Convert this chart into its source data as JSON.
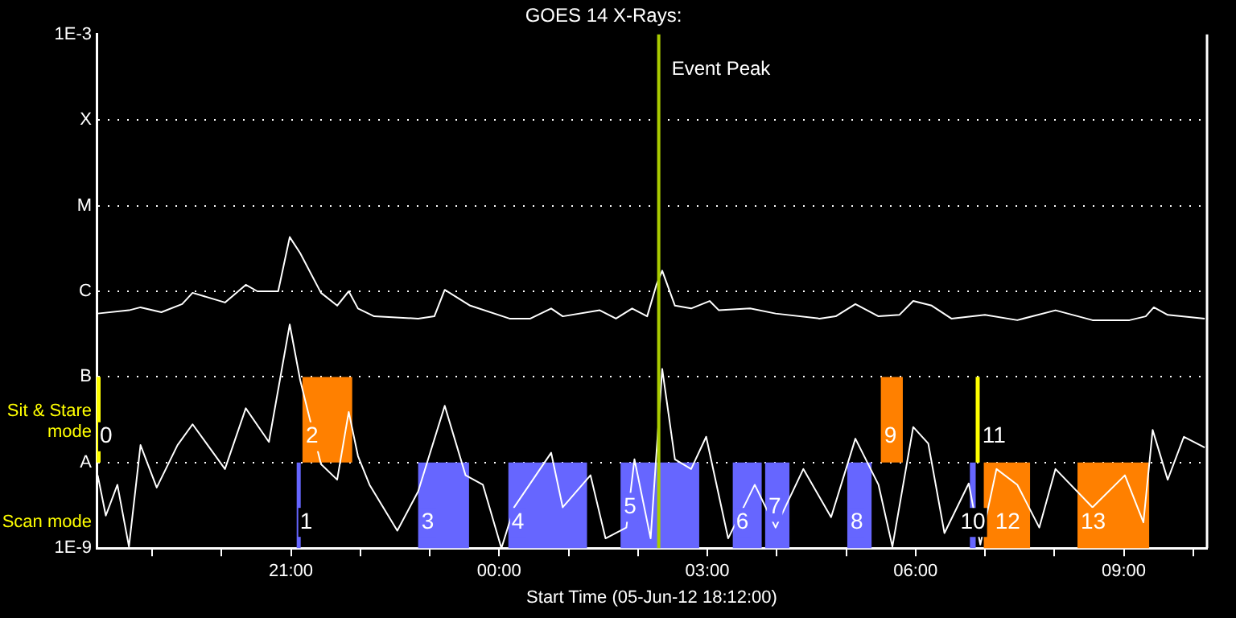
{
  "chart_data": {
    "type": "line",
    "title": "GOES 14 X-Rays:",
    "xlabel": "Start Time (05-Jun-12 18:12:00)",
    "log": true,
    "grid": "y",
    "legend": false,
    "marker": "none",
    "xlim": [
      "--06-05T18:12",
      "--06-06T10:12"
    ],
    "xticks": [
      {
        "value": "--06-05T19:00",
        "label": null
      },
      {
        "value": "--06-05T20:00",
        "label": null
      },
      {
        "value": "--06-05T21:00",
        "label": "21:00"
      },
      {
        "value": "--06-05T22:00",
        "label": null
      },
      {
        "value": "--06-05T23:00",
        "label": null
      },
      {
        "value": "--06-06T00:00",
        "label": "00:00"
      },
      {
        "value": "--06-06T01:00",
        "label": null
      },
      {
        "value": "--06-06T02:00",
        "label": null
      },
      {
        "value": "--06-06T03:00",
        "label": "03:00"
      },
      {
        "value": "--06-06T04:00",
        "label": null
      },
      {
        "value": "--06-06T05:00",
        "label": null
      },
      {
        "value": "--06-06T06:00",
        "label": "06:00"
      },
      {
        "value": "--06-06T07:00",
        "label": null
      },
      {
        "value": "--06-06T08:00",
        "label": null
      },
      {
        "value": "--06-06T09:00",
        "label": "09:00"
      },
      {
        "value": "--06-06T10:00",
        "label": null
      }
    ],
    "ylim": [
      1e-09,
      0.001
    ],
    "yticks": [
      {
        "value": 1e-09,
        "label": "1E-9"
      },
      {
        "value": 2e-09,
        "label": "Scan mode"
      },
      {
        "value": 1e-08,
        "label": "A"
      },
      {
        "value": 3e-08,
        "label": "Sit & Stare mode"
      },
      {
        "value": 1e-07,
        "label": "B"
      },
      {
        "value": 1e-06,
        "label": "C"
      },
      {
        "value": 1e-05,
        "label": "M"
      },
      {
        "value": 0.0001,
        "label": "X"
      },
      {
        "value": 0.001,
        "label": "1E-3"
      }
    ],
    "series": [
      {
        "color": "#ffffff",
        "x": [
          "--06-05T18:13",
          "--06-05T18:40",
          "--06-05T18:50",
          "--06-05T19:08",
          "--06-05T19:26",
          "--06-05T19:35",
          "--06-05T20:03",
          "--06-05T20:21",
          "--06-05T20:31",
          "--06-05T20:49",
          "--06-05T20:59",
          "--06-05T21:08",
          "--06-05T21:26",
          "--06-05T21:40",
          "--06-05T21:50",
          "--06-05T21:58",
          "--06-05T22:12",
          "--06-05T22:50",
          "--06-05T23:04",
          "--06-05T23:13",
          "--06-05T23:35",
          "--06-06T00:09",
          "--06-06T00:27",
          "--06-06T00:45",
          "--06-06T00:55",
          "--06-06T01:27",
          "--06-06T01:41",
          "--06-06T01:55",
          "--06-06T02:08",
          "--06-06T02:16",
          "--06-06T02:21",
          "--06-06T02:32",
          "--06-06T02:46",
          "--06-06T03:02",
          "--06-06T03:10",
          "--06-06T03:37",
          "--06-06T03:59",
          "--06-06T04:37",
          "--06-06T04:51",
          "--06-06T05:08",
          "--06-06T05:28",
          "--06-06T05:46",
          "--06-06T05:58",
          "--06-06T06:14",
          "--06-06T06:31",
          "--06-06T07:00",
          "--06-06T07:28",
          "--06-06T08:01",
          "--06-06T08:33",
          "--06-06T09:05",
          "--06-06T09:19",
          "--06-06T09:26",
          "--06-06T09:38",
          "--06-06T10:10"
        ],
        "values": [
          5.5e-07,
          6e-07,
          6.5e-07,
          5.7e-07,
          7.1e-07,
          9.6e-07,
          7.4e-07,
          1.19e-06,
          1e-06,
          1e-06,
          4.3e-06,
          2.8e-06,
          9.6e-07,
          6.8e-07,
          1e-06,
          6.3e-07,
          5.1e-07,
          4.8e-07,
          5.1e-07,
          1.04e-06,
          6.8e-07,
          4.8e-07,
          4.8e-07,
          6.3e-07,
          5.1e-07,
          6e-07,
          4.8e-07,
          6.3e-07,
          5.1e-07,
          1.19e-06,
          1.74e-06,
          6.8e-07,
          6.3e-07,
          7.7e-07,
          6e-07,
          6.3e-07,
          5.5e-07,
          4.8e-07,
          5.1e-07,
          7.1e-07,
          5.1e-07,
          5.3e-07,
          7.7e-07,
          6.8e-07,
          4.8e-07,
          5.3e-07,
          4.6e-07,
          6e-07,
          4.6e-07,
          4.6e-07,
          5.1e-07,
          6.5e-07,
          5.3e-07,
          4.8e-07
        ]
      },
      {
        "color": "#ffffff",
        "x": [
          "--06-05T18:13",
          "--06-05T18:20",
          "--06-05T18:30",
          "--06-05T18:40",
          "--06-05T18:50",
          "--06-05T19:04",
          "--06-05T19:22",
          "--06-05T19:35",
          "--06-05T20:03",
          "--06-05T20:21",
          "--06-05T20:41",
          "--06-05T20:59",
          "--06-05T21:08",
          "--06-05T21:26",
          "--06-05T21:40",
          "--06-05T21:50",
          "--06-05T21:58",
          "--06-05T22:08",
          "--06-05T22:32",
          "--06-05T22:50",
          "--06-05T23:13",
          "--06-05T23:31",
          "--06-05T23:46",
          "--06-06T00:02",
          "--06-06T00:13",
          "--06-06T00:45",
          "--06-06T00:55",
          "--06-06T01:19",
          "--06-06T01:32",
          "--06-06T01:50",
          "--06-06T01:57",
          "--06-06T02:11",
          "--06-06T02:21",
          "--06-06T02:32",
          "--06-06T02:46",
          "--06-06T02:59",
          "--06-06T03:18",
          "--06-06T03:41",
          "--06-06T03:59",
          "--06-06T04:23",
          "--06-06T04:47",
          "--06-06T05:08",
          "--06-06T05:28",
          "--06-06T05:40",
          "--06-06T05:58",
          "--06-06T06:11",
          "--06-06T06:25",
          "--06-06T06:46",
          "--06-06T06:56",
          "--06-06T07:10",
          "--06-06T07:28",
          "--06-06T07:47",
          "--06-06T08:01",
          "--06-06T08:33",
          "--06-06T09:01",
          "--06-06T09:17",
          "--06-06T09:25",
          "--06-06T09:38",
          "--06-06T09:52",
          "--06-06T10:10"
        ],
        "values": [
          7.1e-09,
          2.4e-09,
          5.5e-09,
          1.04e-09,
          1.6e-08,
          5.1e-09,
          1.6e-08,
          2.8e-08,
          8.4e-09,
          4.3e-08,
          1.74e-08,
          4.1e-07,
          9.2e-08,
          9.6e-09,
          6.3e-09,
          3.9e-08,
          1.19e-08,
          5.5e-09,
          1.6e-09,
          4.6e-09,
          4.6e-08,
          7.1e-09,
          5.5e-09,
          1e-09,
          3e-09,
          1.3e-08,
          3e-09,
          7.1e-09,
          1.3e-09,
          1.74e-09,
          1.09e-08,
          1.3e-09,
          1.24e-07,
          1.09e-08,
          8.4e-09,
          2e-08,
          1.3e-09,
          5.5e-09,
          1.74e-09,
          8.4e-09,
          2.3e-09,
          1.9e-08,
          5.5e-09,
          1.04e-09,
          2.6e-08,
          1.67e-08,
          1.5e-09,
          5.7e-09,
          1.1e-09,
          8.4e-09,
          5.5e-09,
          1.74e-09,
          8.4e-09,
          3e-09,
          7.1e-09,
          2e-09,
          2.4e-08,
          6.3e-09,
          2e-08,
          1.5e-08
        ]
      }
    ],
    "ref_lines": [
      {
        "axis": "x",
        "value": "--06-06T02:18",
        "label": "Event Peak",
        "color": "#aacc00"
      }
    ],
    "bands": [
      {
        "axis": "x",
        "from": "--06-05T18:12",
        "to": "--06-05T18:15",
        "color": "#ffff00"
      },
      {
        "axis": "x",
        "from": "--06-05T21:05",
        "to": "--06-05T21:08",
        "color": "#6666ff"
      },
      {
        "axis": "x",
        "from": "--06-05T21:10",
        "to": "--06-05T21:53",
        "color": "#ff8000"
      },
      {
        "axis": "x",
        "from": "--06-05T22:50",
        "to": "--06-05T23:34",
        "color": "#6666ff"
      },
      {
        "axis": "x",
        "from": "--06-06T00:08",
        "to": "--06-06T01:16",
        "color": "#6666ff"
      },
      {
        "axis": "x",
        "from": "--06-06T01:45",
        "to": "--06-06T02:53",
        "color": "#6666ff"
      },
      {
        "axis": "x",
        "from": "--06-06T03:22",
        "to": "--06-06T03:47",
        "color": "#6666ff"
      },
      {
        "axis": "x",
        "from": "--06-06T03:50",
        "to": "--06-06T04:11",
        "color": "#6666ff"
      },
      {
        "axis": "x",
        "from": "--06-06T05:01",
        "to": "--06-06T05:22",
        "color": "#6666ff"
      },
      {
        "axis": "x",
        "from": "--06-06T05:30",
        "to": "--06-06T05:49",
        "color": "#ff8000"
      },
      {
        "axis": "x",
        "from": "--06-06T06:47",
        "to": "--06-06T06:52",
        "color": "#6666ff"
      },
      {
        "axis": "x",
        "from": "--06-06T06:52",
        "to": "--06-06T06:55",
        "color": "#ffff00"
      },
      {
        "axis": "x",
        "from": "--06-06T06:59",
        "to": "--06-06T07:39",
        "color": "#ff8000"
      },
      {
        "axis": "x",
        "from": "--06-06T08:20",
        "to": "--06-06T09:22",
        "color": "#ff8000"
      }
    ],
    "annotations": [
      {
        "text": "0",
        "x": "--06-05T18:12",
        "y": 2e-08
      },
      {
        "text": "1",
        "x": "--06-05T21:05",
        "y": 2e-09
      },
      {
        "text": "2",
        "x": "--06-05T21:10",
        "y": 2e-08
      },
      {
        "text": "3",
        "x": "--06-05T22:50",
        "y": 2e-09
      },
      {
        "text": "4",
        "x": "--06-06T00:08",
        "y": 2e-09
      },
      {
        "text": "5",
        "x": "--06-06T01:45",
        "y": 3e-09
      },
      {
        "text": "6",
        "x": "--06-06T03:22",
        "y": 2e-09
      },
      {
        "text": "7",
        "x": "--06-06T03:50",
        "y": 3e-09
      },
      {
        "text": "8",
        "x": "--06-06T05:01",
        "y": 2e-09
      },
      {
        "text": "9",
        "x": "--06-06T05:30",
        "y": 2e-08
      },
      {
        "text": "10",
        "x": "--06-06T06:36",
        "y": 2e-09
      },
      {
        "text": "11",
        "x": "--06-06T06:55",
        "y": 2e-08
      },
      {
        "text": "12",
        "x": "--06-06T07:06",
        "y": 2e-09
      },
      {
        "text": "13",
        "x": "--06-06T08:20",
        "y": 2e-09
      }
    ]
  }
}
